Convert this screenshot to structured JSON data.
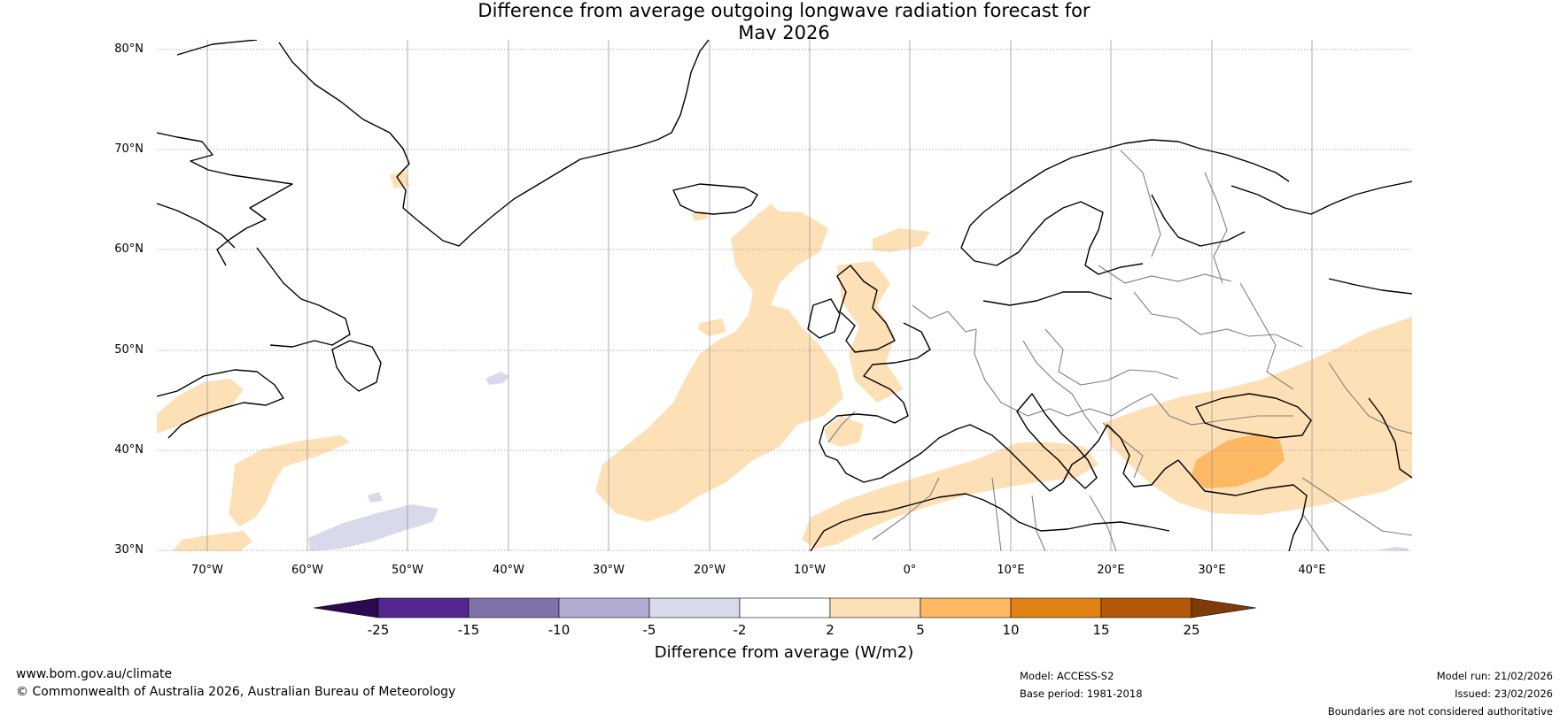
{
  "title": {
    "line1": "Difference from average outgoing longwave radiation forecast for",
    "line2": "May 2026"
  },
  "map": {
    "latitude_labels": [
      "80°N",
      "70°N",
      "60°N",
      "50°N",
      "40°N",
      "30°N"
    ],
    "longitude_labels": [
      "70°W",
      "60°W",
      "50°W",
      "40°W",
      "30°W",
      "20°W",
      "10°W",
      "0°",
      "10°E",
      "20°E",
      "30°E",
      "40°E"
    ],
    "extent": {
      "lon_min": -75,
      "lon_max": 50,
      "lat_min": 30,
      "lat_max": 81
    }
  },
  "colorbar": {
    "title": "Difference from average (W/m2)",
    "tick_labels": [
      "-25",
      "-15",
      "-10",
      "-5",
      "-2",
      "2",
      "5",
      "10",
      "15",
      "25"
    ],
    "colors": {
      "below_min": "#2d0a4f",
      "bins": [
        "#54278f",
        "#8073ac",
        "#b2abd2",
        "#d8daeb",
        "#ffffff",
        "#fee0b6",
        "#fdb863",
        "#e08214",
        "#b35806"
      ],
      "above_max": "#7f3b08"
    }
  },
  "footer": {
    "website": "www.bom.gov.au/climate",
    "copyright": "© Commonwealth of Australia 2026, Australian Bureau of Meteorology",
    "model": "Model: ACCESS-S2",
    "base_period": "Base period: 1981-2018",
    "model_run": "Model run: 21/02/2026",
    "issued": "Issued: 23/02/2026",
    "disclaimer": "Boundaries are not considered authoritative"
  }
}
